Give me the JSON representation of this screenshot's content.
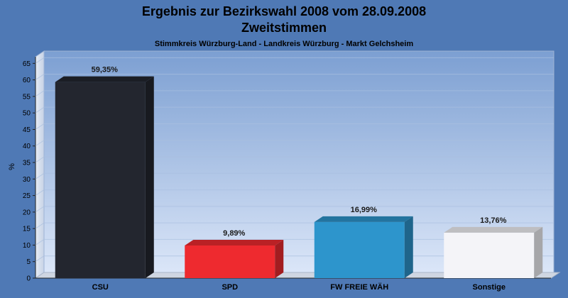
{
  "chart_data": {
    "type": "bar",
    "title": "Ergebnis zur Bezirkswahl 2008 vom 28.09.2008",
    "title2": "Zweitstimmen",
    "subtitle": "Stimmkreis Würzburg-Land - Landkreis Würzburg - Markt Gelchsheim",
    "ylabel": "%",
    "ylim": [
      0,
      67
    ],
    "yticks": [
      0,
      5,
      10,
      15,
      20,
      25,
      30,
      35,
      40,
      45,
      50,
      55,
      60,
      65
    ],
    "categories": [
      "CSU",
      "SPD",
      "FW FREIE WÄH",
      "Sonstige"
    ],
    "values": [
      59.35,
      9.89,
      16.99,
      13.76
    ],
    "value_labels": [
      "59,35%",
      "9,89%",
      "16,99%",
      "13,76%"
    ],
    "colors": [
      "#23262f",
      "#ee2a2f",
      "#2d95cc",
      "#f4f4f8"
    ],
    "legend": "none",
    "grid": true
  }
}
